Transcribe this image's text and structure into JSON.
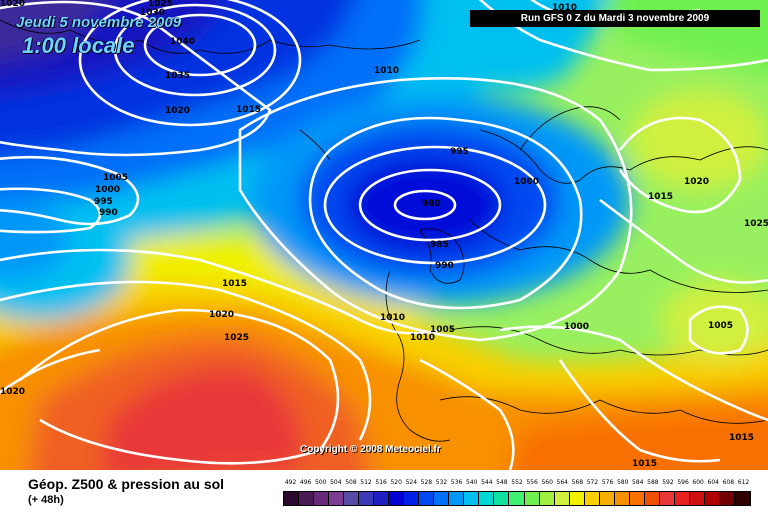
{
  "header": {
    "date": "Jeudi 5 novembre 2009",
    "time": "1:00 locale",
    "run": "Run GFS 0 Z du Mardi 3 novembre 2009"
  },
  "copyright": "Copyright © 2008 Meteociel.fr",
  "footer": {
    "title": "Géop. Z500 & pression au sol",
    "subtitle": "(+ 48h)"
  },
  "legend": {
    "values": [
      "492",
      "496",
      "500",
      "504",
      "508",
      "512",
      "516",
      "520",
      "524",
      "528",
      "532",
      "536",
      "540",
      "544",
      "548",
      "552",
      "556",
      "560",
      "564",
      "568",
      "572",
      "576",
      "580",
      "584",
      "588",
      "592",
      "596",
      "600",
      "604",
      "608",
      "612"
    ],
    "colors": [
      "#2a0a2f",
      "#4a1a55",
      "#682a78",
      "#7a3d90",
      "#5a4aa8",
      "#3a3ab8",
      "#2020c0",
      "#0000d0",
      "#0020e8",
      "#0048f0",
      "#0070f8",
      "#0098f8",
      "#00c0f0",
      "#00d8d8",
      "#10e0a0",
      "#40f070",
      "#70f050",
      "#a0f040",
      "#d0f040",
      "#f0f000",
      "#f8d000",
      "#f8b000",
      "#f89000",
      "#f87000",
      "#f05000",
      "#e83838",
      "#e82020",
      "#d01010",
      "#b00000",
      "#700000",
      "#300000"
    ]
  },
  "isobars": [
    {
      "label": "1030"
    },
    {
      "label": "1025"
    },
    {
      "label": "1040"
    },
    {
      "label": "1035"
    },
    {
      "label": "1020"
    },
    {
      "label": "1015"
    },
    {
      "label": "1010"
    },
    {
      "label": "1020"
    },
    {
      "label": "1005"
    },
    {
      "label": "1000"
    },
    {
      "label": "995"
    },
    {
      "label": "990"
    },
    {
      "label": "995"
    },
    {
      "label": "980"
    },
    {
      "label": "985"
    },
    {
      "label": "990"
    },
    {
      "label": "1000"
    },
    {
      "label": "1010"
    },
    {
      "label": "1020"
    },
    {
      "label": "1015"
    },
    {
      "label": "1025"
    },
    {
      "label": "1015"
    },
    {
      "label": "1020"
    },
    {
      "label": "1025"
    },
    {
      "label": "1010"
    },
    {
      "label": "1005"
    },
    {
      "label": "1010"
    },
    {
      "label": "1000"
    },
    {
      "label": "1005"
    },
    {
      "label": "1020"
    },
    {
      "label": "1015"
    },
    {
      "label": "1015"
    }
  ]
}
